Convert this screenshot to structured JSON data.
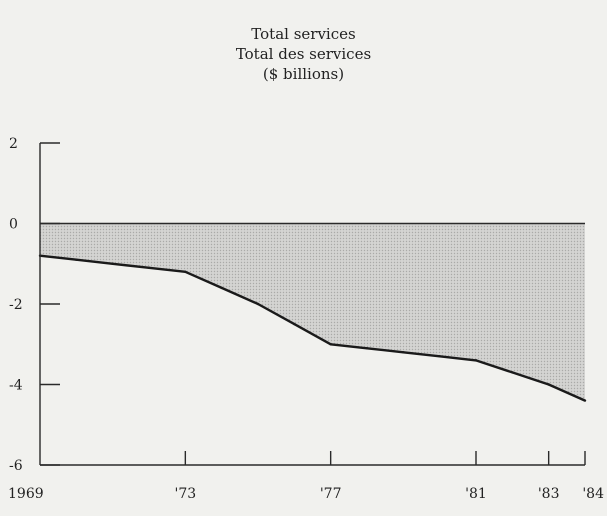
{
  "chart_data": {
    "type": "area",
    "title": [
      "Total services",
      "Total des services",
      "($ billions)"
    ],
    "xlabel": "",
    "ylabel": "",
    "x_tick_labels": [
      "1969",
      "'73",
      "'77",
      "'81",
      "'83",
      "'84"
    ],
    "x_tick_years": [
      1969,
      1973,
      1977,
      1981,
      1983,
      1984
    ],
    "y_tick_labels": [
      "2",
      "0",
      "-2",
      "-4",
      "-6"
    ],
    "y_tick_values": [
      2,
      0,
      -2,
      -4,
      -6
    ],
    "xlim": [
      1969,
      1984
    ],
    "ylim": [
      -6,
      2
    ],
    "grid": false,
    "legend": "none",
    "series": [
      {
        "x": [
          1969,
          1970,
          1971,
          1972,
          1973,
          1974,
          1975,
          1976,
          1977,
          1978,
          1979,
          1980,
          1981,
          1982,
          1983,
          1984
        ],
        "values": [
          -0.8,
          -0.9,
          -1.0,
          -1.1,
          -1.2,
          -1.6,
          -2.0,
          -2.5,
          -3.0,
          -3.1,
          -3.2,
          -3.3,
          -3.4,
          -3.7,
          -4.0,
          -4.4
        ]
      }
    ],
    "colors": {
      "line": "#1a1a1a",
      "fill": "#c4c4c4",
      "axis": "#2a2a2a"
    }
  }
}
